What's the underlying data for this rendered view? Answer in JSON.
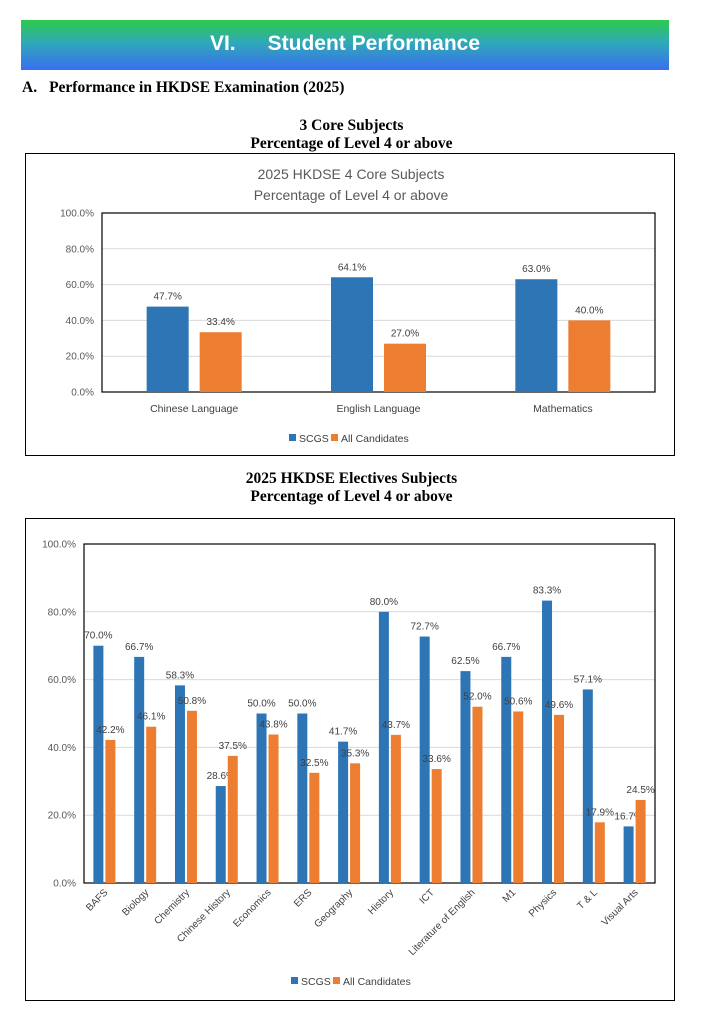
{
  "banner": {
    "number": "VI.",
    "title": "Student Performance"
  },
  "section": {
    "letter": "A.",
    "title": "Performance in HKDSE Examination (2025)"
  },
  "core_heading": {
    "line1": "3 Core Subjects",
    "line2": "Percentage of Level 4 or above"
  },
  "electives_heading": {
    "line1": "2025 HKDSE Electives Subjects",
    "line2": "Percentage of Level 4 or above"
  },
  "colors": {
    "scgs": "#2e75b6",
    "all": "#ed7d31",
    "grid": "#d9d9d9",
    "axis_text": "#595959"
  },
  "chart_data": [
    {
      "type": "bar",
      "title": "2025 HKDSE 4 Core Subjects",
      "subtitle": "Percentage of Level 4 or above",
      "categories": [
        "Chinese Language",
        "English Language",
        "Mathematics"
      ],
      "series": [
        {
          "name": "SCGS",
          "values": [
            47.7,
            64.1,
            63.0
          ]
        },
        {
          "name": "All Candidates",
          "values": [
            33.4,
            27.0,
            40.0
          ]
        }
      ],
      "ylim": [
        0,
        100
      ],
      "yticks": [
        "0.0%",
        "20.0%",
        "40.0%",
        "60.0%",
        "80.0%",
        "100.0%"
      ],
      "value_labels": [
        [
          "47.7%",
          "64.1%",
          "63.0%"
        ],
        [
          "33.4%",
          "27.0%",
          "40.0%"
        ]
      ],
      "legend": "bottom",
      "grid": true
    },
    {
      "type": "bar",
      "title": "",
      "categories": [
        "BAFS",
        "Biology",
        "Chemistry",
        "Chinese History",
        "Economics",
        "ERS",
        "Geography",
        "History",
        "ICT",
        "Literature of English",
        "M1",
        "Physics",
        "T & L",
        "Visual Arts"
      ],
      "series": [
        {
          "name": "SCGS",
          "values": [
            70.0,
            66.7,
            58.3,
            28.6,
            50.0,
            50.0,
            41.7,
            80.0,
            72.7,
            62.5,
            66.7,
            83.3,
            57.1,
            16.7
          ]
        },
        {
          "name": "All Candidates",
          "values": [
            42.2,
            46.1,
            50.8,
            37.5,
            43.8,
            32.5,
            35.3,
            43.7,
            33.6,
            52.0,
            50.6,
            49.6,
            17.9,
            24.5
          ]
        }
      ],
      "ylim": [
        0,
        100
      ],
      "yticks": [
        "0.0%",
        "20.0%",
        "40.0%",
        "60.0%",
        "80.0%",
        "100.0%"
      ],
      "value_labels": [
        [
          "70.0%",
          "66.7%",
          "58.3%",
          "28.6%",
          "50.0%",
          "50.0%",
          "41.7%",
          "80.0%",
          "72.7%",
          "62.5%",
          "66.7%",
          "83.3%",
          "57.1%",
          "16.7%"
        ],
        [
          "42.2%",
          "46.1%",
          "50.8%",
          "37.5%",
          "43.8%",
          "32.5%",
          "35.3%",
          "43.7%",
          "33.6%",
          "52.0%",
          "50.6%",
          "49.6%",
          "17.9%",
          "24.5%"
        ]
      ],
      "legend": "bottom",
      "grid": true
    }
  ]
}
